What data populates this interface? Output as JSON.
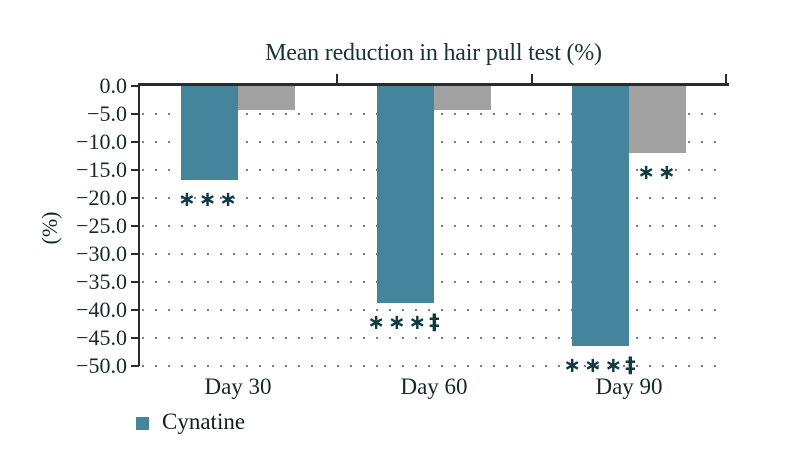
{
  "figure": {
    "title": "Mean reduction in hair pull test (%)",
    "ylabel": "(%)"
  },
  "legend": {
    "items": [
      {
        "label": "Cynatine",
        "color": "#44859c"
      }
    ]
  },
  "chart_data": {
    "type": "bar",
    "title": "Mean reduction in hair pull test (%)",
    "xlabel": "",
    "ylabel": "(%)",
    "categories": [
      "Day 30",
      "Day 60",
      "Day 90"
    ],
    "series": [
      {
        "name": "Cynatine",
        "color": "#44859c",
        "values": [
          -16.8,
          -38.8,
          -46.5
        ]
      },
      {
        "name": "",
        "color": "#a1a1a1",
        "values": [
          -4.2,
          -4.2,
          -12.0
        ]
      }
    ],
    "ylim": [
      -50,
      0
    ],
    "ytick_step": 5,
    "ytick_labels": [
      "0.0",
      "−5.0",
      "−10.0",
      "−15.0",
      "−20.0",
      "−25.0",
      "−30.0",
      "−35.0",
      "−40.0",
      "−45.0",
      "−50.0"
    ],
    "grid": "dotted-horizontal",
    "legend_position": "bottom-left",
    "annotations": [
      {
        "category": "Day 30",
        "series": 0,
        "text": "∗∗∗"
      },
      {
        "category": "Day 60",
        "series": 0,
        "text": "∗∗∗‡"
      },
      {
        "category": "Day 90",
        "series": 0,
        "text": "∗∗∗‡"
      },
      {
        "category": "Day 90",
        "series": 1,
        "text": "∗∗"
      }
    ],
    "colors": {
      "axis": "#2b2b2b",
      "grid_dot": "#7d7d7d",
      "annotation": "#0f3a41",
      "text": "#14282b"
    }
  }
}
